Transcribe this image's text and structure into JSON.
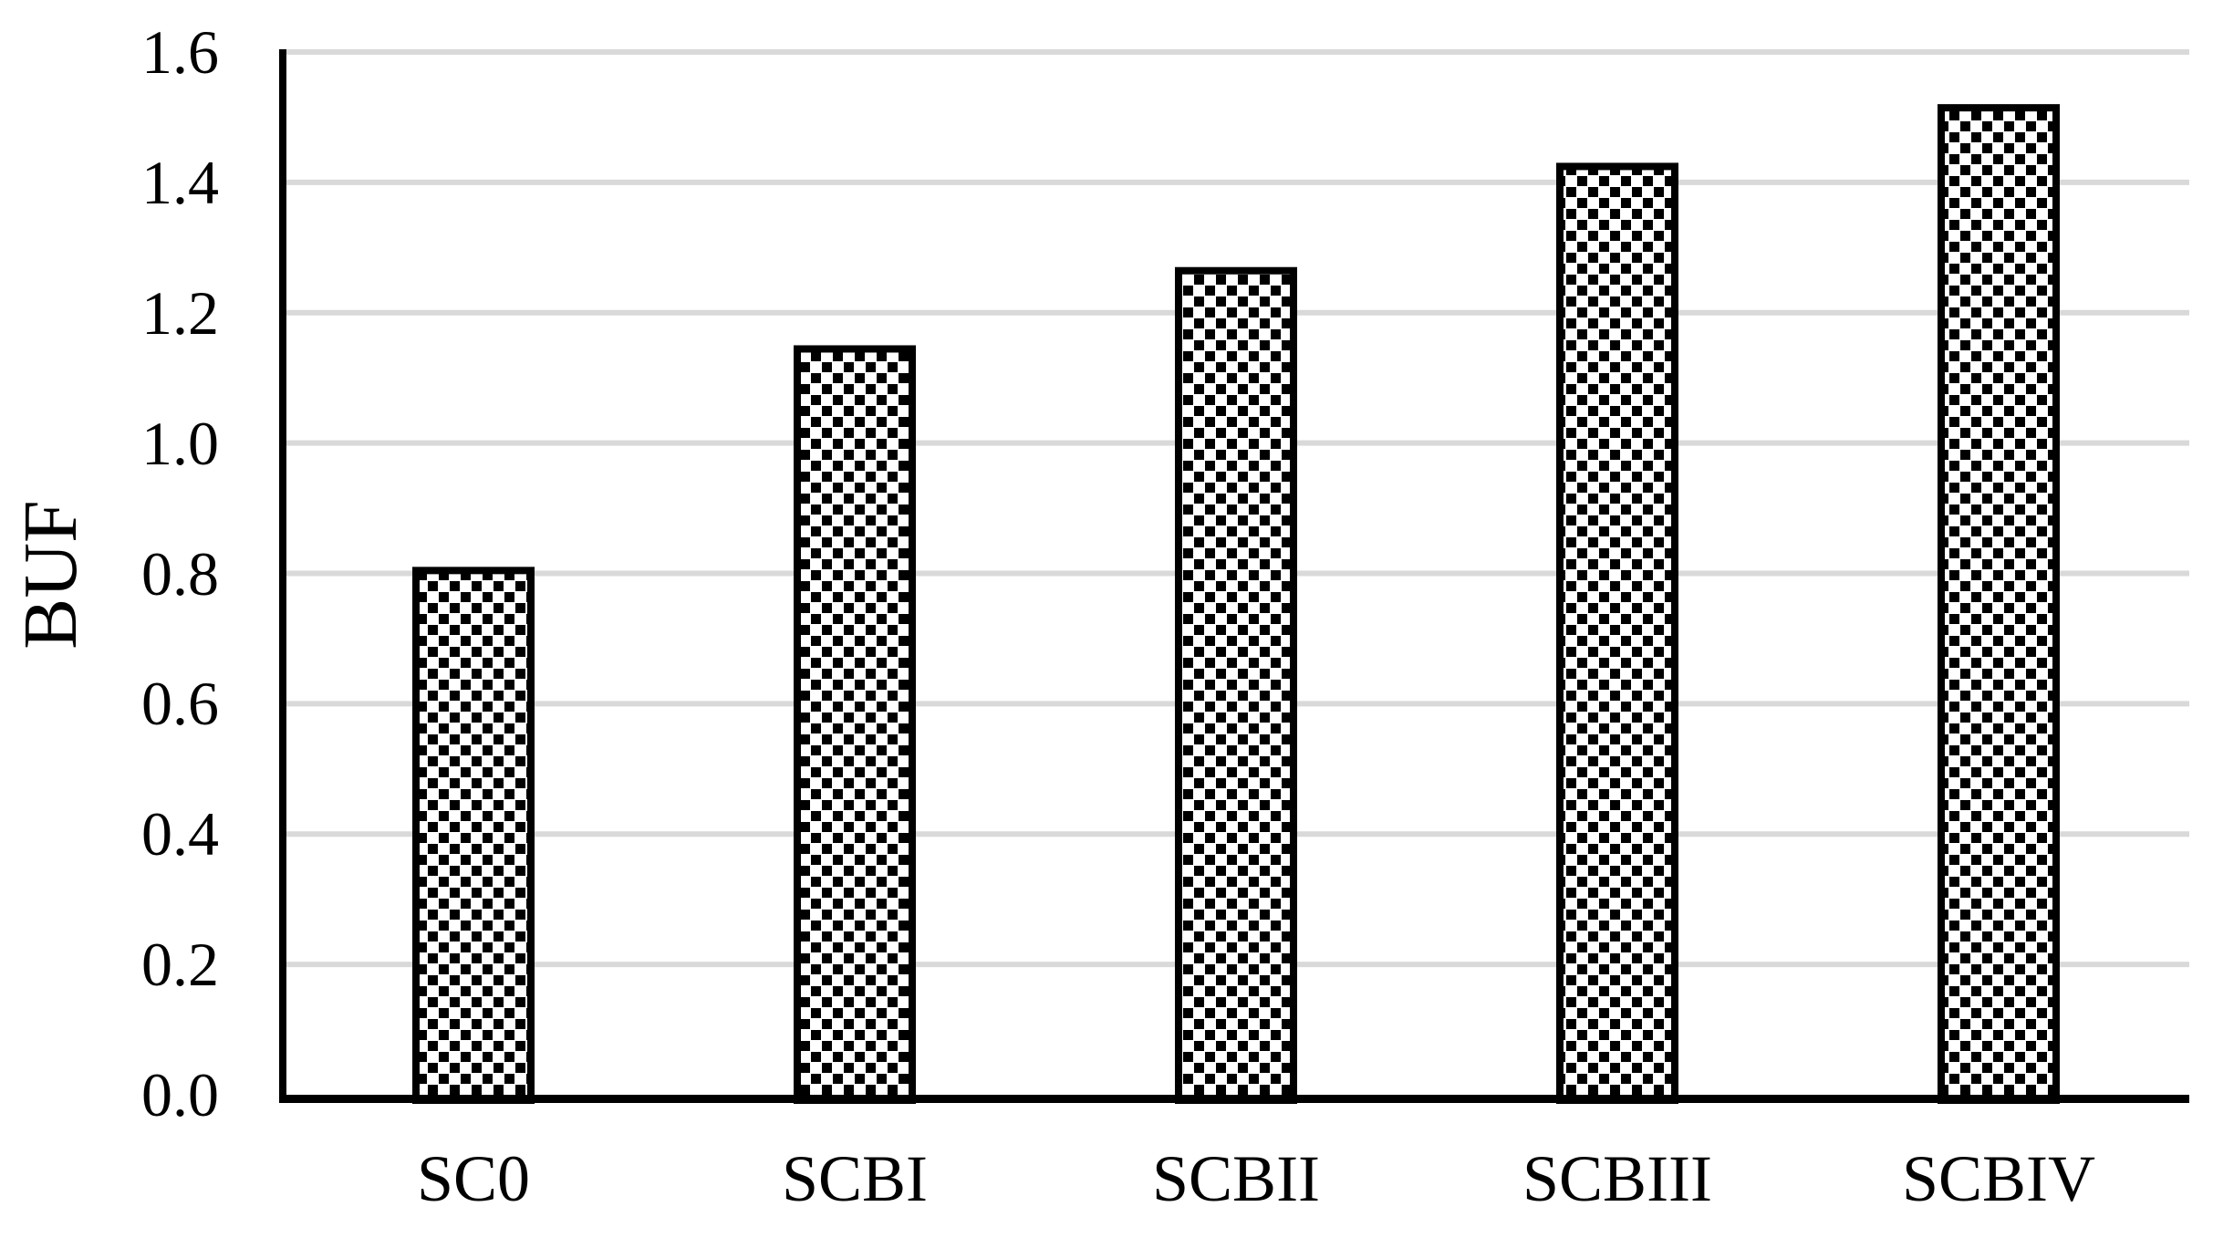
{
  "chart_data": {
    "type": "bar",
    "title": "",
    "xlabel": "",
    "ylabel": "BUF",
    "categories": [
      "SC0",
      "SCBI",
      "SCBII",
      "SCBIII",
      "SCBIV"
    ],
    "values": [
      0.81,
      1.15,
      1.27,
      1.43,
      1.52
    ],
    "ylim": [
      0.0,
      1.6
    ],
    "ytick_step": 0.2,
    "yticks": [
      "0.0",
      "0.2",
      "0.4",
      "0.6",
      "0.8",
      "1.0",
      "1.2",
      "1.4",
      "1.6"
    ],
    "grid": "horizontal",
    "legend_position": "none",
    "colors": {
      "background": "#ffffff",
      "gridline": "#d9d9d9",
      "axis": "#000000",
      "bar_border": "#000000",
      "bar_pattern": "black-dotted-diamond-on-white",
      "text": "#000000"
    }
  }
}
